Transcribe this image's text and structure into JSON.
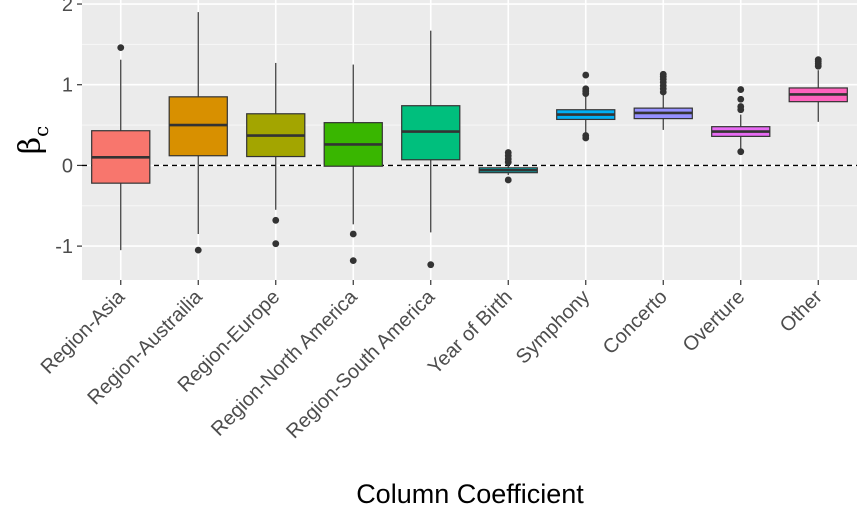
{
  "chart_data": {
    "type": "boxplot",
    "xlabel": "Column Coefficient",
    "ylabel": "β",
    "ylabel_subscript": "c",
    "ylim": [
      -1.42,
      2.05
    ],
    "yticks": [
      -1,
      0,
      1,
      2
    ],
    "ytick_labels": [
      "-1",
      "0",
      "1",
      "2"
    ],
    "reference_line": {
      "y": 0,
      "style": "dashed"
    },
    "grid": true,
    "legend": "none",
    "categories": [
      "Region-Asia",
      "Region-Austrailia",
      "Region-Europe",
      "Region-North America",
      "Region-South America",
      "Year of Birth",
      "Symphony",
      "Concerto",
      "Overture",
      "Other"
    ],
    "boxes": [
      {
        "category": "Region-Asia",
        "color": "#F8766D",
        "min": -1.05,
        "q1": -0.22,
        "median": 0.1,
        "q3": 0.43,
        "max": 1.31,
        "outliers": [
          1.46
        ]
      },
      {
        "category": "Region-Austrailia",
        "color": "#D89000",
        "min": -0.85,
        "q1": 0.12,
        "median": 0.5,
        "q3": 0.85,
        "max": 1.9,
        "outliers": [
          -1.05
        ]
      },
      {
        "category": "Region-Europe",
        "color": "#A3A500",
        "min": -0.55,
        "q1": 0.11,
        "median": 0.37,
        "q3": 0.64,
        "max": 1.27,
        "outliers": [
          -0.68,
          -0.97
        ]
      },
      {
        "category": "Region-North America",
        "color": "#39B600",
        "min": -0.73,
        "q1": -0.01,
        "median": 0.26,
        "q3": 0.53,
        "max": 1.25,
        "outliers": [
          -0.85,
          -1.18
        ]
      },
      {
        "category": "Region-South America",
        "color": "#00BF7D",
        "min": -0.83,
        "q1": 0.07,
        "median": 0.42,
        "q3": 0.74,
        "max": 1.67,
        "outliers": [
          -1.23
        ]
      },
      {
        "category": "Year of Birth",
        "color": "#00BFC4",
        "min": -0.12,
        "q1": -0.09,
        "median": -0.06,
        "q3": -0.03,
        "max": 0.0,
        "outliers": [
          -0.18,
          0.04,
          0.08,
          0.12,
          0.16
        ]
      },
      {
        "category": "Symphony",
        "color": "#00B0F6",
        "min": 0.4,
        "q1": 0.57,
        "median": 0.63,
        "q3": 0.69,
        "max": 0.86,
        "outliers": [
          0.34,
          0.37,
          0.89,
          0.92,
          0.95,
          1.12
        ]
      },
      {
        "category": "Concerto",
        "color": "#9590FF",
        "min": 0.44,
        "q1": 0.58,
        "median": 0.65,
        "q3": 0.71,
        "max": 0.88,
        "outliers": [
          0.91,
          0.95,
          0.99,
          1.03,
          1.07,
          1.1,
          1.13
        ]
      },
      {
        "category": "Overture",
        "color": "#E76BF3",
        "min": 0.2,
        "q1": 0.36,
        "median": 0.42,
        "q3": 0.48,
        "max": 0.63,
        "outliers": [
          0.17,
          0.69,
          0.73,
          0.82,
          0.94
        ]
      },
      {
        "category": "Other",
        "color": "#FF62BC",
        "min": 0.54,
        "q1": 0.79,
        "median": 0.88,
        "q3": 0.96,
        "max": 1.18,
        "outliers": [
          1.23,
          1.26,
          1.29,
          1.31
        ]
      }
    ]
  }
}
